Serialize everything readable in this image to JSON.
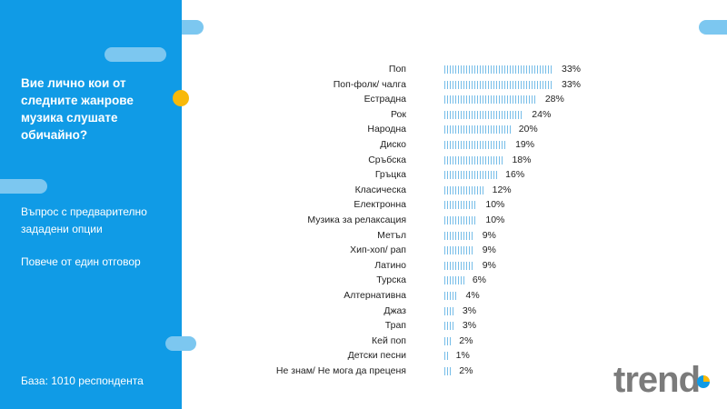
{
  "sidebar": {
    "question": "Вие лично кои от следните жанрове музика слушате обичайно?",
    "note1": "Въпрос с предварително зададени опции",
    "note2": "Повече от един отговор",
    "base": "База: 1010 респондента"
  },
  "logo": {
    "text": "trend"
  },
  "colors": {
    "sidebar": "#109be6",
    "bar": "#76bde8",
    "accent_dot": "#f8b90a",
    "logo": "#7b7b7b"
  },
  "chart_data": {
    "type": "bar",
    "orientation": "horizontal",
    "categories": [
      "Поп",
      "Поп-фолк/ чалга",
      "Естрадна",
      "Рок",
      "Народна",
      "Диско",
      "Сръбска",
      "Гръцка",
      "Класическа",
      "Електронна",
      "Музика за релаксация",
      "Метъл",
      "Хип-хоп/ рап",
      "Латино",
      "Турска",
      "Алтернативна",
      "Джаз",
      "Трап",
      "Кей поп",
      "Детски песни",
      "Не знам/ Не мога да преценя"
    ],
    "values": [
      33,
      33,
      28,
      24,
      20,
      19,
      18,
      16,
      12,
      10,
      10,
      9,
      9,
      9,
      6,
      4,
      3,
      3,
      2,
      1,
      2
    ],
    "labels": [
      "33%",
      "33%",
      "28%",
      "24%",
      "20%",
      "19%",
      "18%",
      "16%",
      "12%",
      "10%",
      "10%",
      "9%",
      "9%",
      "9%",
      "6%",
      "4%",
      "3%",
      "3%",
      "2%",
      "1%",
      "2%"
    ],
    "unit": "%",
    "xlim": [
      0,
      33
    ],
    "grid": false,
    "legend": "none"
  }
}
